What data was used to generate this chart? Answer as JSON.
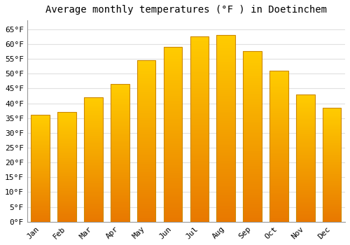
{
  "title": "Average monthly temperatures (°F ) in Doetinchem",
  "months": [
    "Jan",
    "Feb",
    "Mar",
    "Apr",
    "May",
    "Jun",
    "Jul",
    "Aug",
    "Sep",
    "Oct",
    "Nov",
    "Dec"
  ],
  "values": [
    36,
    37,
    42,
    46.5,
    54.5,
    59,
    62.5,
    63,
    57.5,
    51,
    43,
    38.5
  ],
  "color_bottom": "#E87800",
  "color_top": "#FFCC00",
  "color_mid": "#FFA500",
  "bar_edge_color": "#CC8800",
  "ylim": [
    0,
    68
  ],
  "yticks": [
    0,
    5,
    10,
    15,
    20,
    25,
    30,
    35,
    40,
    45,
    50,
    55,
    60,
    65
  ],
  "ytick_labels": [
    "0°F",
    "5°F",
    "10°F",
    "15°F",
    "20°F",
    "25°F",
    "30°F",
    "35°F",
    "40°F",
    "45°F",
    "50°F",
    "55°F",
    "60°F",
    "65°F"
  ],
  "background_color": "#ffffff",
  "grid_color": "#e0e0e0",
  "title_fontsize": 10,
  "tick_fontsize": 8,
  "font_family": "monospace",
  "bar_width": 0.7
}
